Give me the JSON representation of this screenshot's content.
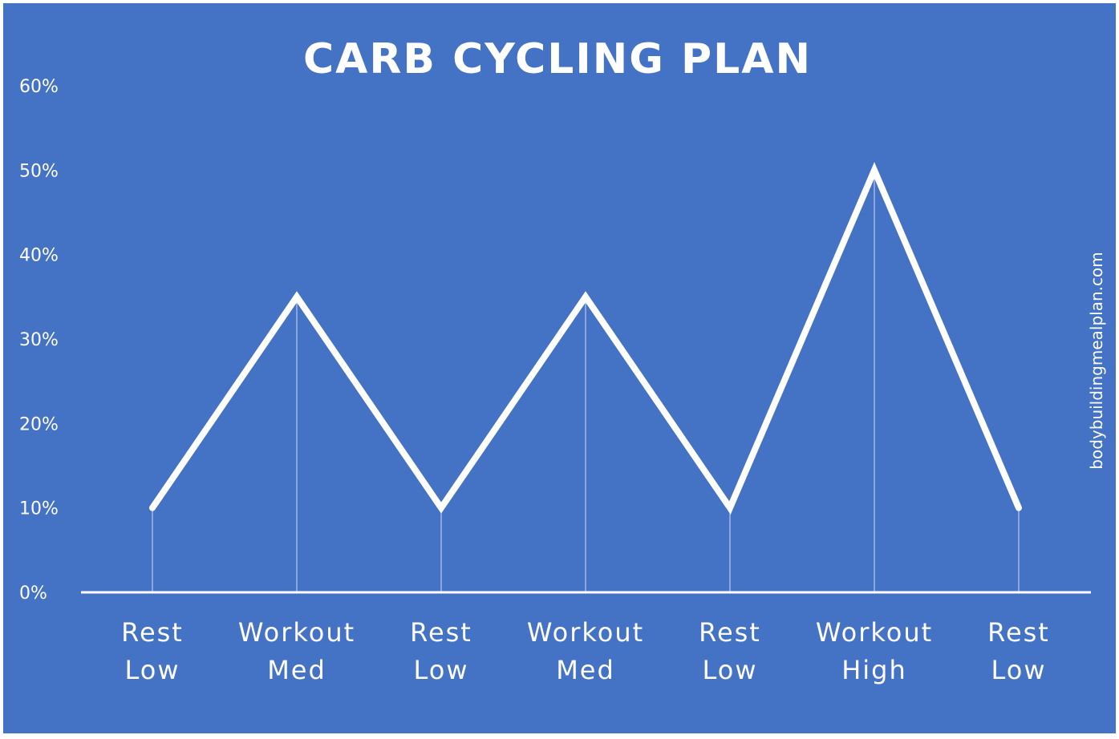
{
  "colors": {
    "background": "#4472C4",
    "line": "#ffffff",
    "axis": "#ffffff",
    "text": "#ffffff"
  },
  "watermark": "bodybuildingmealplan.com",
  "chart_data": {
    "type": "line",
    "title": "CARB CYCLING PLAN",
    "xlabel": "",
    "ylabel": "",
    "categories": [
      [
        "Rest",
        "Low"
      ],
      [
        "Workout",
        "Med"
      ],
      [
        "Rest",
        "Low"
      ],
      [
        "Workout",
        "Med"
      ],
      [
        "Rest",
        "Low"
      ],
      [
        "Workout",
        "High"
      ],
      [
        "Rest",
        "Low"
      ]
    ],
    "series": [
      {
        "values": [
          10,
          35,
          10,
          35,
          10,
          50,
          10
        ]
      }
    ],
    "yticks": [
      "0%",
      "10%",
      "20%",
      "30%",
      "40%",
      "50%",
      "60%"
    ],
    "ylim": [
      0,
      60
    ],
    "grid": false,
    "drop_lines": true,
    "legend": "none"
  }
}
